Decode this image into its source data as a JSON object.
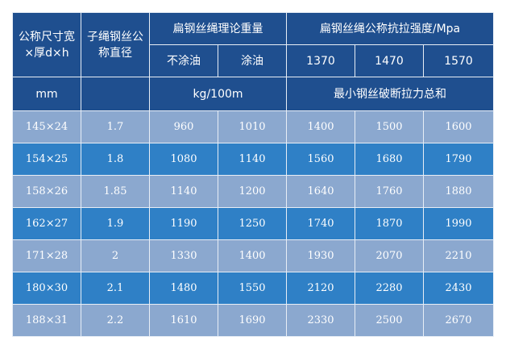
{
  "header": {
    "row1": [
      "公称尺寸宽×厚d×h",
      "子绳钢丝公称直径",
      "扁钢丝绳理论重量",
      "扁钢丝绳公称抗拉强度/Mpa"
    ],
    "row2": [
      "不涂油",
      "涂油",
      "1370",
      "1470",
      "1570"
    ],
    "row3": [
      "mm",
      "kg/100m",
      "最小钢丝破断拉力总和"
    ]
  },
  "rows": [
    [
      "145×24",
      "1.7",
      "960",
      "1010",
      "1400",
      "1500",
      "1600"
    ],
    [
      "154×25",
      "1.8",
      "1080",
      "1140",
      "1560",
      "1680",
      "1790"
    ],
    [
      "158×26",
      "1.85",
      "1140",
      "1200",
      "1640",
      "1760",
      "1880"
    ],
    [
      "162×27",
      "1.9",
      "1190",
      "1250",
      "1740",
      "1870",
      "1990"
    ],
    [
      "171×28",
      "2",
      "1330",
      "1400",
      "1930",
      "2070",
      "2210"
    ],
    [
      "180×30",
      "2.1",
      "1480",
      "1550",
      "2120",
      "2280",
      "2430"
    ],
    [
      "188×31",
      "2.2",
      "1610",
      "1690",
      "2330",
      "2500",
      "2670"
    ]
  ]
}
